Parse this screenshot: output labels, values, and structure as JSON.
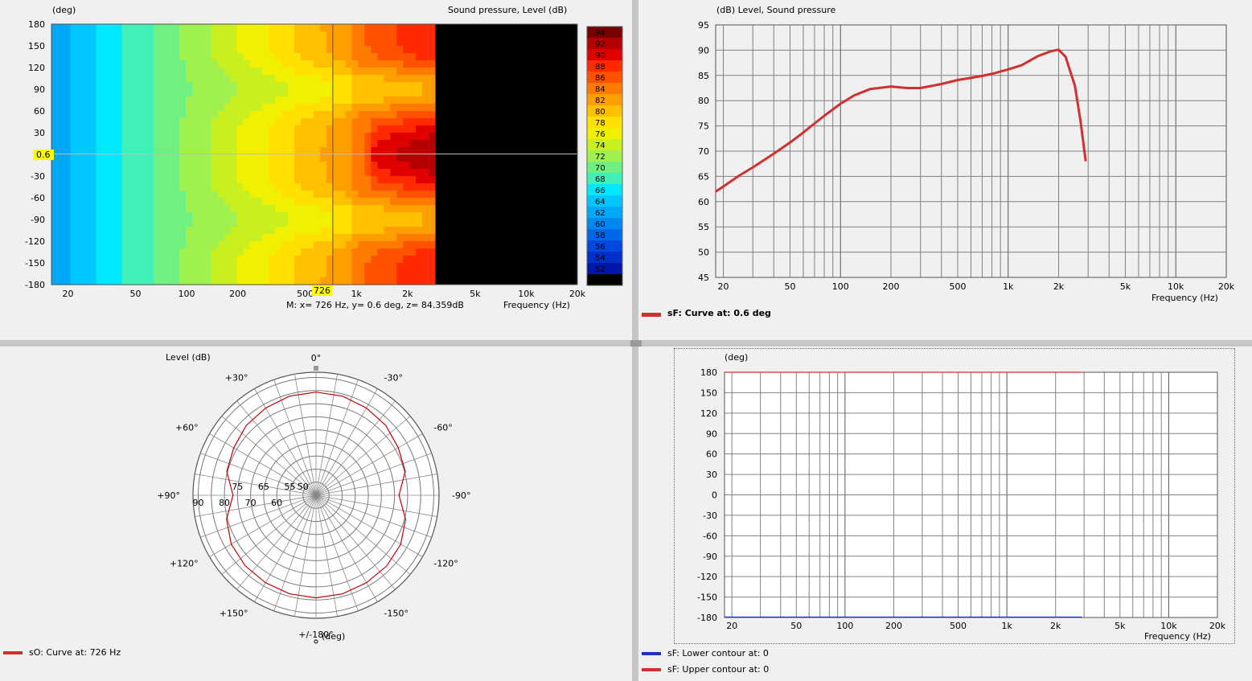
{
  "colors": {
    "accent_red": "#d03030",
    "lower_blue": "#2030c0",
    "background": "#f0f0f0",
    "grid": "#808080"
  },
  "splitters": {
    "vertical": "vertical-splitter",
    "horizontal": "horizontal-splitter"
  },
  "contour_panel": {
    "ylabel": "(deg)",
    "zlabel": "Sound pressure, Level  (dB)",
    "xlabel": "Frequency  (Hz)",
    "cursor_x_label": "726",
    "cursor_y_label": "0.6",
    "marker_readout": "M:  x= 726 Hz,  y= 0.6 deg, z= 84.359dB"
  },
  "level_panel": {
    "header": "(dB)  Level, Sound pressure",
    "xlabel": "Frequency  (Hz)",
    "legend": "sF: Curve at: 0.6 deg"
  },
  "polar_panel": {
    "title": "Level  (dB)",
    "axis_unit": "(deg)",
    "legend": "sO: Curve at: 726 Hz"
  },
  "phase_panel": {
    "header": "(deg)",
    "xlabel": "Frequency  (Hz)",
    "legend_lower": "sF: Lower contour at: 0",
    "legend_upper": "sF: Upper contour at: 0"
  },
  "chart_data": [
    {
      "type": "heatmap",
      "title": "Sound pressure, Level  (dB)",
      "xlabel": "Frequency  (Hz)",
      "ylabel": "(deg)",
      "x_scale": "log",
      "xlim": [
        16,
        20000
      ],
      "ylim": [
        -180,
        180
      ],
      "x_ticks": [
        "20",
        "50",
        "100",
        "200",
        "500",
        "1k",
        "2k",
        "5k",
        "10k",
        "20k"
      ],
      "y_ticks": [
        "180",
        "150",
        "120",
        "90",
        "60",
        "30",
        "-30",
        "-60",
        "-90",
        "-120",
        "-150",
        "-180"
      ],
      "colorbar_levels": [
        94,
        92,
        90,
        88,
        86,
        84,
        82,
        80,
        78,
        76,
        74,
        72,
        70,
        68,
        66,
        64,
        62,
        60,
        58,
        56,
        54,
        52,
        50
      ],
      "colorbar_colors": [
        "#7a0000",
        "#b40000",
        "#e00000",
        "#ff2a00",
        "#ff5200",
        "#ff7a00",
        "#ff9e00",
        "#ffc000",
        "#ffe000",
        "#f0f000",
        "#c8f020",
        "#a0f050",
        "#70f080",
        "#40f0b8",
        "#00e8ff",
        "#00c8ff",
        "#00a8f8",
        "#0088f0",
        "#0068e8",
        "#0048e0",
        "#0030c8",
        "#0018a8",
        "#000000"
      ],
      "data_limit_hz": 2900,
      "marker": {
        "x": 726,
        "y": 0.6,
        "z": 84.359
      }
    },
    {
      "type": "line",
      "title": "Level, Sound pressure",
      "ylabel": "(dB)",
      "xlabel": "Frequency  (Hz)",
      "x_scale": "log",
      "xlim": [
        18,
        20000
      ],
      "ylim": [
        45,
        95
      ],
      "x_ticks": [
        "20",
        "50",
        "100",
        "200",
        "500",
        "1k",
        "2k",
        "5k",
        "10k",
        "20k"
      ],
      "y_ticks": [
        "95",
        "90",
        "85",
        "80",
        "75",
        "70",
        "65",
        "60",
        "55",
        "50",
        "45"
      ],
      "series": [
        {
          "name": "sF: Curve at: 0.6 deg",
          "x": [
            18,
            20,
            25,
            30,
            40,
            50,
            60,
            70,
            80,
            100,
            120,
            150,
            200,
            250,
            300,
            400,
            500,
            600,
            700,
            800,
            1000,
            1200,
            1500,
            1800,
            2000,
            2200,
            2500,
            2700,
            2900
          ],
          "y": [
            62,
            63,
            65.2,
            66.8,
            69.5,
            71.7,
            73.7,
            75.5,
            77,
            79.4,
            81,
            82.3,
            82.8,
            82.5,
            82.5,
            83.3,
            84.1,
            84.5,
            84.9,
            85.3,
            86.2,
            87,
            88.8,
            89.8,
            90.1,
            88.7,
            83,
            76,
            68
          ]
        }
      ]
    },
    {
      "type": "line",
      "polar": true,
      "title": "Level  (dB)",
      "angle_labels": [
        "0°",
        "-30°",
        "-60°",
        "-90°",
        "-120°",
        "-150°",
        "+/-180°",
        "+150°",
        "+120°",
        "+90°",
        "+60°",
        "+30°"
      ],
      "radial_ticks": [
        "50",
        "55",
        "60",
        "65",
        "70",
        "75",
        "80",
        "90"
      ],
      "series": [
        {
          "name": "sO: Curve at: 726 Hz",
          "angle_deg": [
            0,
            15,
            30,
            45,
            60,
            75,
            90,
            105,
            120,
            135,
            150,
            165,
            180,
            195,
            210,
            225,
            240,
            255,
            270,
            285,
            300,
            315,
            330,
            345
          ],
          "level_db": [
            84.4,
            84.2,
            83.5,
            82.7,
            81.3,
            80.3,
            76.7,
            80.4,
            82.4,
            83.2,
            83.6,
            84,
            84.2,
            84,
            83.6,
            83.2,
            82.4,
            80.4,
            76.7,
            80.3,
            81.3,
            82.7,
            83.5,
            84.2
          ]
        }
      ]
    },
    {
      "type": "line",
      "ylabel": "(deg)",
      "xlabel": "Frequency  (Hz)",
      "x_scale": "log",
      "xlim": [
        18,
        20000
      ],
      "ylim": [
        -180,
        180
      ],
      "x_ticks": [
        "20",
        "50",
        "100",
        "200",
        "500",
        "1k",
        "2k",
        "5k",
        "10k",
        "20k"
      ],
      "y_ticks": [
        "180",
        "150",
        "120",
        "90",
        "60",
        "30",
        "0",
        "-30",
        "-60",
        "-90",
        "-120",
        "-150",
        "-180"
      ],
      "series": [
        {
          "name": "sF: Lower contour at: 0",
          "x": [
            18,
            2900
          ],
          "y": [
            -180,
            -180
          ]
        },
        {
          "name": "sF: Upper contour at: 0",
          "x": [
            18,
            2900
          ],
          "y": [
            180,
            180
          ]
        }
      ]
    }
  ]
}
